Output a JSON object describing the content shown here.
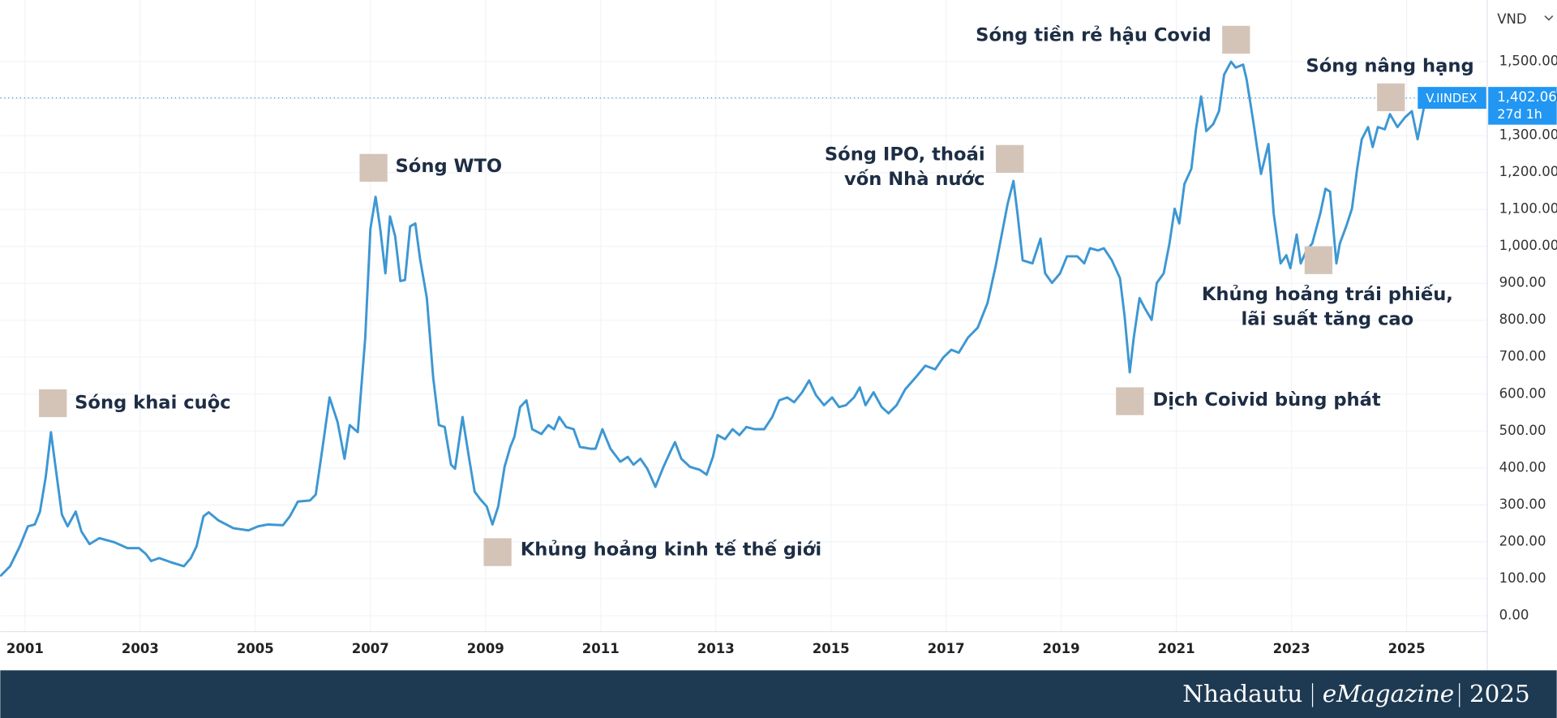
{
  "chart_data": {
    "type": "line",
    "currency": "VND",
    "price_tag": {
      "value": 1402.06,
      "label": "1,402.06",
      "countdown": "27d 1h"
    },
    "xlim": [
      2000.57,
      2026.4
    ],
    "ylim": [
      -43,
      1667
    ],
    "grid": true,
    "xticks": [
      2001,
      2003,
      2005,
      2007,
      2009,
      2011,
      2013,
      2015,
      2017,
      2019,
      2021,
      2023,
      2025
    ],
    "yticks": [
      {
        "value": 0,
        "label": "0.00"
      },
      {
        "value": 100,
        "label": "100.00"
      },
      {
        "value": 200,
        "label": "200.00"
      },
      {
        "value": 300,
        "label": "300.00"
      },
      {
        "value": 400,
        "label": "400.00"
      },
      {
        "value": 500,
        "label": "500.00"
      },
      {
        "value": 600,
        "label": "600.00"
      },
      {
        "value": 700,
        "label": "700.00"
      },
      {
        "value": 800,
        "label": "800.00"
      },
      {
        "value": 900,
        "label": "900.00"
      },
      {
        "value": 1000,
        "label": "1,000.00"
      },
      {
        "value": 1100,
        "label": "1,100.00"
      },
      {
        "value": 1200,
        "label": "1,200.00"
      },
      {
        "value": 1300,
        "label": "1,300.00"
      },
      {
        "value": 1400,
        "label": "1,400.00"
      },
      {
        "value": 1500,
        "label": "1,500.00"
      }
    ],
    "x": [
      2000.57,
      2000.74,
      2000.91,
      2001.05,
      2001.17,
      2001.26,
      2001.36,
      2001.45,
      2001.53,
      2001.64,
      2001.74,
      2001.88,
      2001.98,
      2002.12,
      2002.29,
      2002.55,
      2002.78,
      2002.98,
      2003.1,
      2003.19,
      2003.33,
      2003.53,
      2003.76,
      2003.88,
      2003.98,
      2004.1,
      2004.19,
      2004.36,
      2004.62,
      2004.88,
      2005.05,
      2005.22,
      2005.48,
      2005.6,
      2005.74,
      2005.95,
      2006.05,
      2006.17,
      2006.29,
      2006.43,
      2006.55,
      2006.64,
      2006.78,
      2006.91,
      2007.0,
      2007.09,
      2007.17,
      2007.26,
      2007.34,
      2007.43,
      2007.52,
      2007.6,
      2007.69,
      2007.78,
      2007.86,
      2007.98,
      2008.09,
      2008.19,
      2008.29,
      2008.4,
      2008.47,
      2008.6,
      2008.71,
      2008.81,
      2008.91,
      2009.02,
      2009.12,
      2009.22,
      2009.33,
      2009.43,
      2009.5,
      2009.6,
      2009.71,
      2009.81,
      2009.97,
      2010.09,
      2010.19,
      2010.28,
      2010.4,
      2010.53,
      2010.64,
      2010.83,
      2010.91,
      2011.03,
      2011.17,
      2011.34,
      2011.47,
      2011.57,
      2011.69,
      2011.81,
      2011.95,
      2012.09,
      2012.21,
      2012.29,
      2012.4,
      2012.55,
      2012.72,
      2012.84,
      2012.95,
      2013.03,
      2013.16,
      2013.29,
      2013.41,
      2013.53,
      2013.67,
      2013.84,
      2013.98,
      2014.1,
      2014.24,
      2014.36,
      2014.5,
      2014.62,
      2014.74,
      2014.88,
      2015.02,
      2015.14,
      2015.26,
      2015.4,
      2015.5,
      2015.6,
      2015.74,
      2015.88,
      2016.0,
      2016.14,
      2016.29,
      2016.47,
      2016.64,
      2016.81,
      2016.95,
      2017.09,
      2017.22,
      2017.38,
      2017.55,
      2017.72,
      2017.86,
      2017.98,
      2018.07,
      2018.17,
      2018.24,
      2018.33,
      2018.5,
      2018.64,
      2018.72,
      2018.84,
      2018.98,
      2019.1,
      2019.28,
      2019.4,
      2019.5,
      2019.64,
      2019.74,
      2019.88,
      2020.02,
      2020.1,
      2020.19,
      2020.26,
      2020.36,
      2020.45,
      2020.57,
      2020.66,
      2020.78,
      2020.88,
      2020.97,
      2021.05,
      2021.14,
      2021.26,
      2021.34,
      2021.43,
      2021.52,
      2021.64,
      2021.74,
      2021.83,
      2021.95,
      2022.03,
      2022.16,
      2022.22,
      2022.33,
      2022.47,
      2022.6,
      2022.69,
      2022.81,
      2022.91,
      2022.98,
      2023.09,
      2023.16,
      2023.26,
      2023.36,
      2023.5,
      2023.59,
      2023.67,
      2023.78,
      2023.84,
      2023.95,
      2024.05,
      2024.14,
      2024.22,
      2024.33,
      2024.41,
      2024.5,
      2024.62,
      2024.71,
      2024.84,
      2024.97,
      2025.09,
      2025.19,
      2025.31,
      2025.4,
      2025.5
    ],
    "series": [
      {
        "name": "V.IINDEX",
        "color": "#3d97d3",
        "values": [
          107,
          134,
          188,
          242,
          247,
          282,
          376,
          497,
          403,
          274,
          242,
          282,
          228,
          194,
          210,
          199,
          183,
          183,
          167,
          148,
          156,
          145,
          134,
          156,
          188,
          269,
          280,
          258,
          237,
          231,
          242,
          247,
          245,
          269,
          309,
          312,
          328,
          457,
          591,
          524,
          425,
          516,
          497,
          753,
          1048,
          1134,
          1048,
          927,
          1081,
          1027,
          906,
          909,
          1054,
          1062,
          968,
          860,
          645,
          516,
          511,
          409,
          398,
          538,
          430,
          336,
          315,
          296,
          247,
          296,
          403,
          457,
          484,
          565,
          583,
          505,
          492,
          516,
          505,
          538,
          511,
          505,
          457,
          452,
          452,
          505,
          452,
          417,
          430,
          409,
          425,
          398,
          349,
          403,
          444,
          470,
          425,
          403,
          395,
          382,
          430,
          489,
          478,
          505,
          489,
          511,
          505,
          505,
          538,
          583,
          591,
          578,
          605,
          637,
          597,
          570,
          591,
          565,
          570,
          591,
          618,
          570,
          605,
          565,
          548,
          570,
          613,
          645,
          677,
          667,
          699,
          720,
          712,
          753,
          780,
          847,
          946,
          1043,
          1116,
          1177,
          1089,
          962,
          954,
          1021,
          927,
          901,
          927,
          973,
          973,
          954,
          995,
          989,
          995,
          962,
          914,
          812,
          659,
          753,
          860,
          833,
          801,
          901,
          927,
          1008,
          1102,
          1062,
          1169,
          1210,
          1317,
          1406,
          1312,
          1331,
          1366,
          1465,
          1500,
          1484,
          1492,
          1452,
          1344,
          1196,
          1277,
          1089,
          954,
          976,
          941,
          1032,
          954,
          989,
          1008,
          1089,
          1156,
          1148,
          954,
          1008,
          1054,
          1102,
          1210,
          1290,
          1323,
          1269,
          1323,
          1317,
          1358,
          1323,
          1349,
          1366,
          1290,
          1384,
          1390,
          1402
        ]
      }
    ],
    "annotations": [
      {
        "lines": [
          "Sóng khai cuộc"
        ]
      },
      {
        "lines": [
          "Sóng WTO"
        ]
      },
      {
        "lines": [
          "Khủng hoảng kinh tế thế giới"
        ]
      },
      {
        "lines": [
          "Sóng IPO, thoái",
          "vốn Nhà nước"
        ]
      },
      {
        "lines": [
          "Dịch Coivid bùng phát"
        ]
      },
      {
        "lines": [
          "Sóng tiền rẻ hậu Covid"
        ]
      },
      {
        "lines": [
          "Khủng hoảng trái phiếu,",
          "lãi suất tăng cao"
        ]
      },
      {
        "lines": [
          "Sóng nâng hạng"
        ]
      }
    ]
  },
  "footer": {
    "brand": "Nhadautu",
    "product": "eMagazine",
    "year": "2025"
  }
}
